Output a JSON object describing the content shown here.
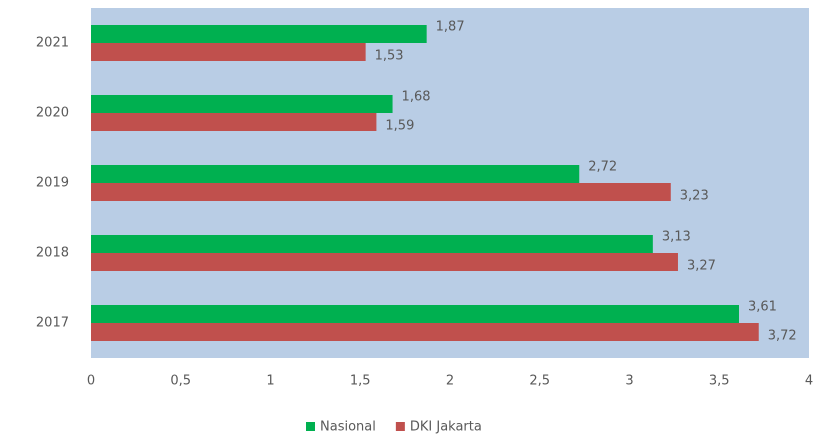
{
  "chart_data": {
    "type": "barh",
    "categories": [
      "2021",
      "2020",
      "2019",
      "2018",
      "2017"
    ],
    "series": [
      {
        "name": "Nasional",
        "color": "#00b050",
        "values": [
          1.87,
          1.68,
          2.72,
          3.13,
          3.61
        ],
        "value_labels": [
          "1,87",
          "1,68",
          "2,72",
          "3,13",
          "3,61"
        ]
      },
      {
        "name": "DKI Jakarta",
        "color": "#c0504d",
        "values": [
          1.53,
          1.59,
          3.23,
          3.27,
          3.72
        ],
        "value_labels": [
          "1,53",
          "1,59",
          "3,23",
          "3,27",
          "3,72"
        ]
      }
    ],
    "xlim": [
      0,
      4
    ],
    "xticks": [
      0,
      {
        "value": 0.5,
        "label": "0,5"
      },
      1,
      {
        "value": 1.5,
        "label": "1,5"
      },
      2,
      {
        "value": 2.5,
        "label": "2,5"
      },
      3,
      {
        "value": 3.5,
        "label": "3,5"
      },
      4
    ],
    "plot_background": "#b9cde5",
    "legend": "bottom"
  }
}
